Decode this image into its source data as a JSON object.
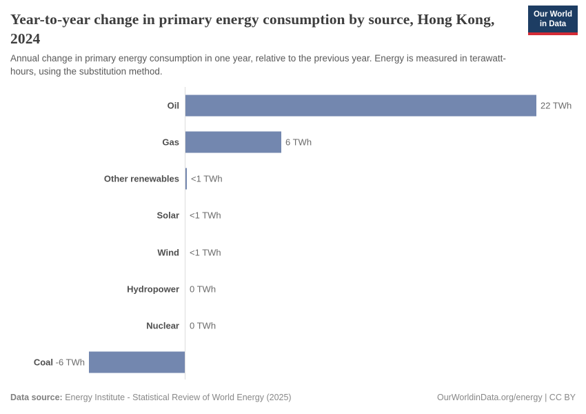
{
  "header": {
    "title": "Year-to-year change in primary energy consumption by source, Hong Kong, 2024",
    "subtitle": "Annual change in primary energy consumption in one year, relative to the previous year. Energy is measured in terawatt-hours, using the substitution method.",
    "logo": {
      "line1": "Our World",
      "line2": "in Data",
      "bg_color": "#1d3d63",
      "accent_color": "#d42b36"
    }
  },
  "chart_data": {
    "type": "bar",
    "orientation": "horizontal",
    "title": "Year-to-year change in primary energy consumption by source, Hong Kong, 2024",
    "unit": "TWh",
    "categories": [
      "Oil",
      "Gas",
      "Other renewables",
      "Solar",
      "Wind",
      "Hydropower",
      "Nuclear",
      "Coal"
    ],
    "values": [
      22,
      6,
      0.1,
      0.02,
      0.01,
      0,
      0,
      -6
    ],
    "value_labels": [
      "22 TWh",
      "6 TWh",
      "<1 TWh",
      "<1 TWh",
      "<1 TWh",
      "0 TWh",
      "0 TWh",
      "-6 TWh"
    ],
    "xlim": [
      -6,
      22
    ],
    "grid": false,
    "legend": false,
    "bar_color": "#7387af",
    "axis_color": "#dcdcdc"
  },
  "footer": {
    "source_label": "Data source:",
    "source_text": " Energy Institute - Statistical Review of World Energy (2025)",
    "credit": "OurWorldinData.org/energy | CC BY"
  }
}
